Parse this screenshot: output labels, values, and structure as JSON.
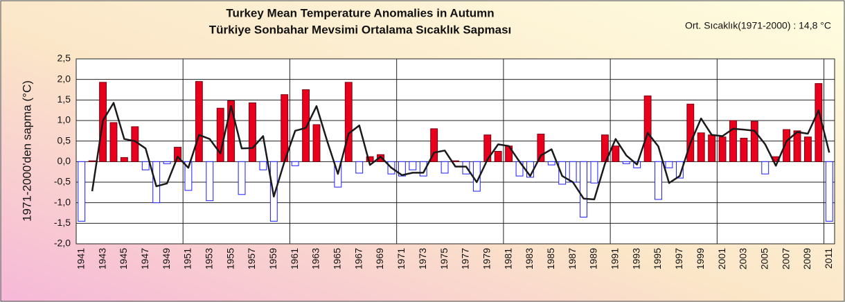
{
  "chart_data": {
    "type": "bar",
    "title": "Turkey Mean Temperature Anomalies in Autumn",
    "subtitle": "Türkiye Sonbahar Mevsimi Ortalama Sıcaklık Sapması",
    "annotation": "Ort. Sıcaklık(1971-2000) : 14,8 °C",
    "y_label": "1971-2000'den sapma (°C)",
    "categories": [
      "1941",
      null,
      "1943",
      null,
      "1945",
      null,
      "1947",
      null,
      "1949",
      null,
      "1951",
      null,
      "1953",
      null,
      "1955",
      null,
      "1957",
      null,
      "1959",
      null,
      "1961",
      null,
      "1963",
      null,
      "1965",
      null,
      "1967",
      null,
      "1969",
      null,
      "1971",
      null,
      "1973",
      null,
      "1975",
      null,
      "1977",
      null,
      "1979",
      null,
      "1981",
      null,
      "1983",
      null,
      "1985",
      null,
      "1987",
      null,
      "1989",
      null,
      "1991",
      null,
      "1993",
      null,
      "1995",
      null,
      "1997",
      null,
      "1999",
      null,
      "2001",
      null,
      "2003",
      null,
      "2005",
      null,
      "2007",
      null,
      "2009",
      null,
      "2011"
    ],
    "values": [
      -1.45,
      0.02,
      1.93,
      0.95,
      0.1,
      0.85,
      -0.2,
      -1.0,
      -0.05,
      0.35,
      -0.7,
      1.95,
      -0.95,
      1.3,
      1.48,
      -0.8,
      1.43,
      -0.2,
      -1.45,
      1.63,
      -0.1,
      1.75,
      0.9,
      0.0,
      -0.62,
      1.93,
      -0.28,
      0.12,
      0.17,
      -0.3,
      -0.35,
      -0.2,
      -0.35,
      0.8,
      -0.28,
      0.02,
      -0.3,
      -0.72,
      0.65,
      0.25,
      0.38,
      -0.35,
      -0.38,
      0.67,
      -0.08,
      -0.55,
      -0.5,
      -1.35,
      -0.52,
      0.65,
      0.38,
      -0.05,
      -0.15,
      1.6,
      -0.92,
      -0.15,
      -0.4,
      1.4,
      0.7,
      0.65,
      0.6,
      1.0,
      0.57,
      0.98,
      -0.3,
      0.12,
      0.78,
      0.75,
      0.6,
      1.9,
      -1.45
    ],
    "line_values": [
      null,
      -0.72,
      1.0,
      1.43,
      0.55,
      0.5,
      0.32,
      -0.6,
      -0.53,
      0.12,
      -0.15,
      0.65,
      0.55,
      0.2,
      1.35,
      0.32,
      0.33,
      0.62,
      -0.85,
      0.0,
      0.75,
      0.82,
      1.35,
      0.5,
      -0.3,
      0.68,
      0.88,
      -0.08,
      0.12,
      -0.15,
      -0.33,
      -0.27,
      -0.27,
      0.22,
      0.27,
      -0.12,
      -0.12,
      -0.5,
      0.05,
      0.42,
      0.38,
      0.0,
      -0.35,
      0.15,
      0.3,
      -0.35,
      -0.5,
      -0.9,
      -0.92,
      -0.05,
      0.55,
      0.15,
      -0.07,
      0.7,
      0.37,
      -0.52,
      -0.35,
      0.45,
      1.05,
      0.65,
      0.62,
      0.8,
      0.78,
      0.75,
      0.42,
      -0.1,
      0.5,
      0.72,
      0.68,
      1.25,
      0.22
    ],
    "pos_color": "#e8001c",
    "neg_color": "#1a1aff",
    "line_color": "#1a1a1a",
    "ylim": [
      -2.0,
      2.5
    ],
    "yticks": [
      {
        "value": -2.0,
        "label": "-2,0"
      },
      {
        "value": -1.5,
        "label": "-1,5"
      },
      {
        "value": -1.0,
        "label": "-1,0"
      },
      {
        "value": -0.5,
        "label": "-0,5"
      },
      {
        "value": 0.0,
        "label": "0,0"
      },
      {
        "value": 0.5,
        "label": "0,5"
      },
      {
        "value": 1.0,
        "label": "1,0"
      },
      {
        "value": 1.5,
        "label": "1,5"
      },
      {
        "value": 2.0,
        "label": "2,0"
      },
      {
        "value": 2.5,
        "label": "2,5"
      }
    ],
    "grid": true
  }
}
